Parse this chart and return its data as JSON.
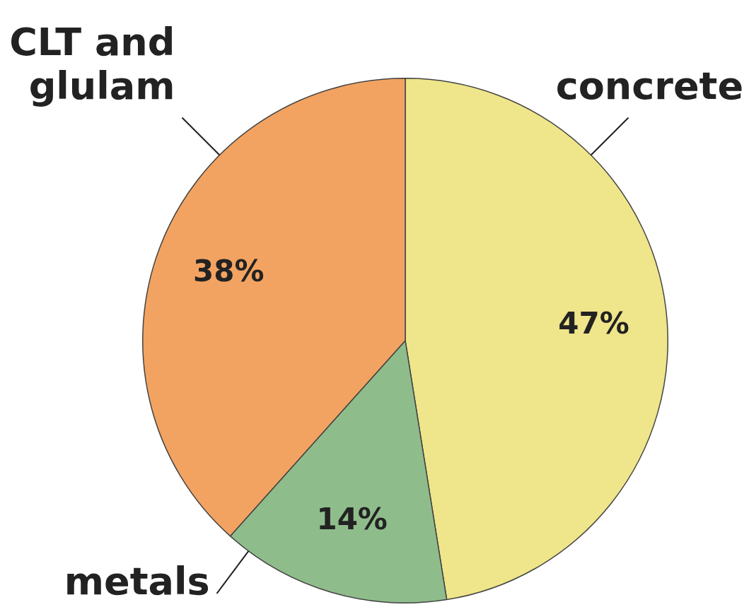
{
  "chart_data": {
    "type": "pie",
    "categories": [
      "concrete",
      "metals",
      "CLT and glulam"
    ],
    "values": [
      47,
      14,
      38
    ],
    "colors": [
      "#efe58a",
      "#8fbc8b",
      "#f3a361"
    ],
    "value_labels": [
      "47%",
      "14%",
      "38%"
    ],
    "legend": false
  }
}
